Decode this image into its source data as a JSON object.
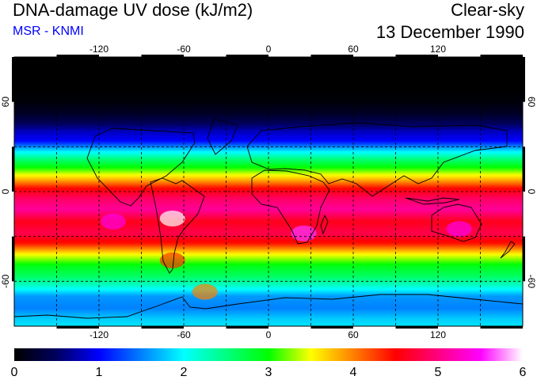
{
  "header": {
    "title": "DNA-damage UV dose (kJ/m2)",
    "source": "MSR - KNMI",
    "condition": "Clear-sky",
    "date": "13 December 1990"
  },
  "map": {
    "projection": "equirectangular",
    "lon_range": [
      -180,
      180
    ],
    "lat_range": [
      -90,
      90
    ],
    "grid_spacing_deg": 30,
    "lon_ticks": [
      {
        "value": -120,
        "label": "-120"
      },
      {
        "value": -60,
        "label": "-60"
      },
      {
        "value": 0,
        "label": "0"
      },
      {
        "value": 60,
        "label": "60"
      },
      {
        "value": 120,
        "label": "120"
      }
    ],
    "lat_ticks": [
      {
        "value": 60,
        "label": "60"
      },
      {
        "value": 0,
        "label": "0"
      },
      {
        "value": -60,
        "label": "-60"
      }
    ],
    "dose_profile": [
      {
        "lat": 90,
        "dose": 0.0
      },
      {
        "lat": 70,
        "dose": 0.0
      },
      {
        "lat": 60,
        "dose": 0.05
      },
      {
        "lat": 52,
        "dose": 0.2
      },
      {
        "lat": 45,
        "dose": 0.5
      },
      {
        "lat": 40,
        "dose": 0.8
      },
      {
        "lat": 34,
        "dose": 1.0
      },
      {
        "lat": 28,
        "dose": 1.8
      },
      {
        "lat": 22,
        "dose": 2.5
      },
      {
        "lat": 15,
        "dose": 3.1
      },
      {
        "lat": 8,
        "dose": 3.8
      },
      {
        "lat": 2,
        "dose": 4.5
      },
      {
        "lat": -5,
        "dose": 4.9
      },
      {
        "lat": -12,
        "dose": 5.1
      },
      {
        "lat": -20,
        "dose": 4.6
      },
      {
        "lat": -28,
        "dose": 4.8
      },
      {
        "lat": -35,
        "dose": 4.4
      },
      {
        "lat": -42,
        "dose": 3.5
      },
      {
        "lat": -50,
        "dose": 2.9
      },
      {
        "lat": -57,
        "dose": 2.6
      },
      {
        "lat": -63,
        "dose": 2.2
      },
      {
        "lat": -70,
        "dose": 1.6
      },
      {
        "lat": -78,
        "dose": 1.5
      },
      {
        "lat": -85,
        "dose": 1.8
      },
      {
        "lat": -90,
        "dose": 1.9
      }
    ],
    "hotspots": [
      {
        "name": "andes",
        "lon": -68,
        "lat": -18,
        "dose": 6.0
      },
      {
        "name": "patagonia",
        "lon": -68,
        "lat": -46,
        "dose": 4.3
      },
      {
        "name": "weddell",
        "lon": -45,
        "lat": -67,
        "dose": 4.0
      },
      {
        "name": "south-africa",
        "lon": 25,
        "lat": -28,
        "dose": 5.6
      },
      {
        "name": "australia",
        "lon": 135,
        "lat": -25,
        "dose": 5.4
      },
      {
        "name": "east-pacific",
        "lon": -110,
        "lat": -20,
        "dose": 5.4
      }
    ]
  },
  "colorbar": {
    "min": 0,
    "max": 6,
    "labels": [
      "0",
      "1",
      "2",
      "3",
      "4",
      "5",
      "6"
    ],
    "stops": [
      {
        "value": 0.0,
        "color": "#000000"
      },
      {
        "value": 0.5,
        "color": "#000060"
      },
      {
        "value": 1.0,
        "color": "#0000ff"
      },
      {
        "value": 1.5,
        "color": "#0080ff"
      },
      {
        "value": 2.0,
        "color": "#00ffff"
      },
      {
        "value": 2.5,
        "color": "#00ff80"
      },
      {
        "value": 3.0,
        "color": "#00ff00"
      },
      {
        "value": 3.5,
        "color": "#ffff00"
      },
      {
        "value": 4.0,
        "color": "#ff8000"
      },
      {
        "value": 4.5,
        "color": "#ff0000"
      },
      {
        "value": 5.0,
        "color": "#ff0080"
      },
      {
        "value": 5.5,
        "color": "#ff00ff"
      },
      {
        "value": 6.0,
        "color": "#ffffff"
      }
    ]
  }
}
